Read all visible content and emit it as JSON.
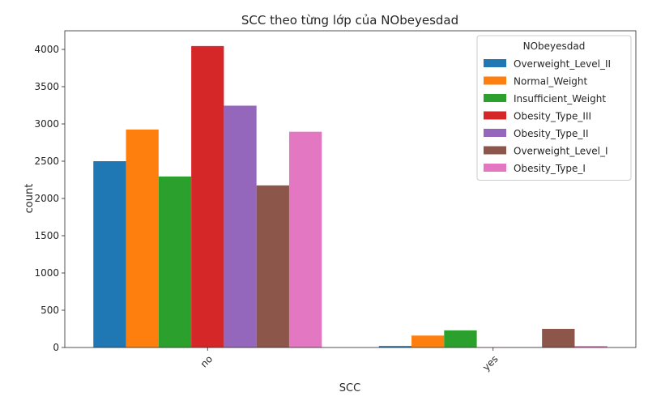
{
  "chart_data": {
    "type": "bar",
    "title": "SCC theo từng lớp của NObeyesdad",
    "xlabel": "SCC",
    "ylabel": "count",
    "categories": [
      "no",
      "yes"
    ],
    "ylim": [
      0,
      4250
    ],
    "yticks": [
      0,
      500,
      1000,
      1500,
      2000,
      2500,
      3000,
      3500,
      4000
    ],
    "legend_title": "NObeyesdad",
    "legend_position": "top-right",
    "grid": false,
    "series": [
      {
        "name": "Overweight_Level_II",
        "color": "#1f77b4",
        "values": [
          2500,
          20
        ]
      },
      {
        "name": "Normal_Weight",
        "color": "#ff7f0e",
        "values": [
          2925,
          160
        ]
      },
      {
        "name": "Insufficient_Weight",
        "color": "#2ca02c",
        "values": [
          2295,
          230
        ]
      },
      {
        "name": "Obesity_Type_III",
        "color": "#d62728",
        "values": [
          4045,
          2
        ]
      },
      {
        "name": "Obesity_Type_II",
        "color": "#9467bd",
        "values": [
          3245,
          3
        ]
      },
      {
        "name": "Overweight_Level_I",
        "color": "#8c564b",
        "values": [
          2175,
          250
        ]
      },
      {
        "name": "Obesity_Type_I",
        "color": "#e377c2",
        "values": [
          2895,
          20
        ]
      }
    ]
  }
}
